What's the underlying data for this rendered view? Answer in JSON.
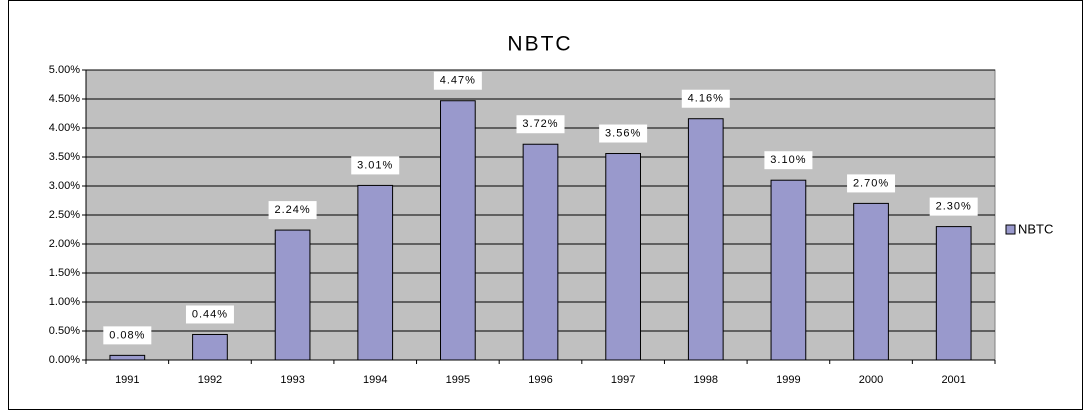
{
  "chart_data": {
    "type": "bar",
    "title": "NBTC",
    "categories": [
      "1991",
      "1992",
      "1993",
      "1994",
      "1995",
      "1996",
      "1997",
      "1998",
      "1999",
      "2000",
      "2001"
    ],
    "series": [
      {
        "name": "NBTC",
        "color": "#9999cc",
        "values": [
          0.08,
          0.44,
          2.24,
          3.01,
          4.47,
          3.72,
          3.56,
          4.16,
          3.1,
          2.7,
          2.3
        ],
        "value_labels": [
          "0.08%",
          "0.44%",
          "2.24%",
          "3.01%",
          "4.47%",
          "3.72%",
          "3.56%",
          "4.16%",
          "3.10%",
          "2.70%",
          "2.30%"
        ]
      }
    ],
    "ylim": [
      0,
      5
    ],
    "yticks": [
      {
        "value": 0,
        "label": "0.00%"
      },
      {
        "value": 0.5,
        "label": "0.50%"
      },
      {
        "value": 1,
        "label": "1.00%"
      },
      {
        "value": 1.5,
        "label": "1.50%"
      },
      {
        "value": 2,
        "label": "2.00%"
      },
      {
        "value": 2.5,
        "label": "2.50%"
      },
      {
        "value": 3,
        "label": "3.00%"
      },
      {
        "value": 3.5,
        "label": "3.50%"
      },
      {
        "value": 4,
        "label": "4.00%"
      },
      {
        "value": 4.5,
        "label": "4.50%"
      },
      {
        "value": 5,
        "label": "5.00%"
      }
    ],
    "grid": true,
    "plot_background": "#c0c0c0",
    "legend": "right"
  }
}
